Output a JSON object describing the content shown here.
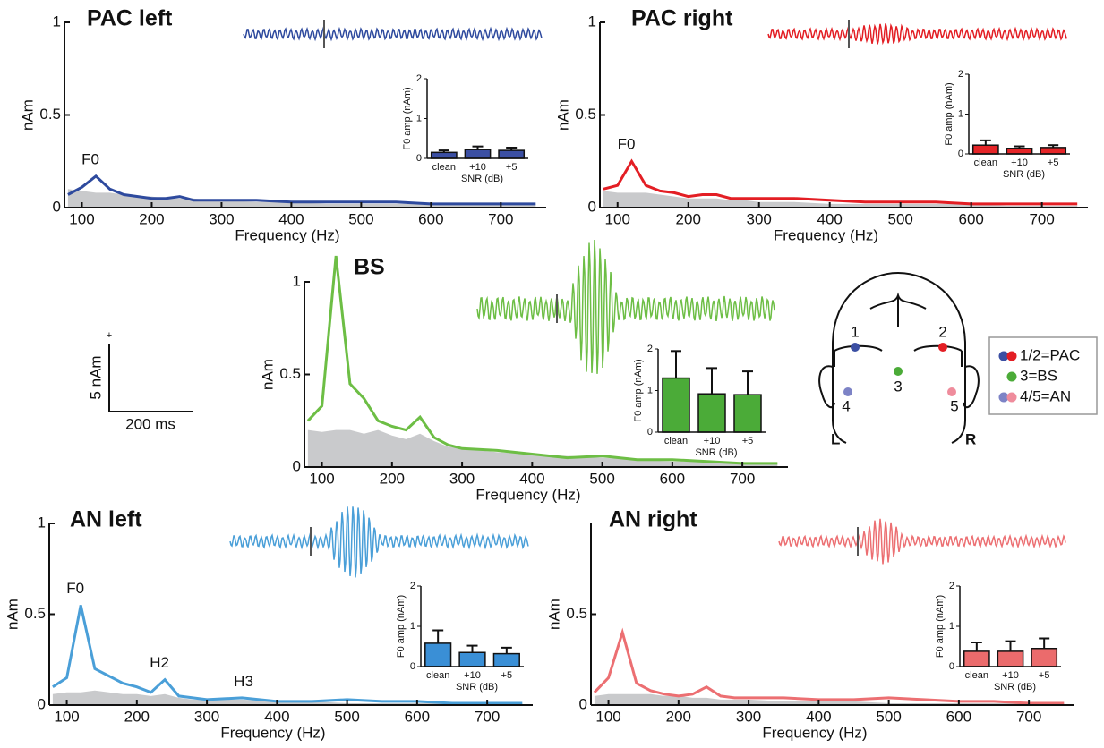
{
  "chart_data": [
    {
      "type": "line",
      "title": "PAC left",
      "xlabel": "Frequency (Hz)",
      "ylabel": "nAm",
      "xlim": [
        75,
        765
      ],
      "ylim": [
        0,
        1
      ],
      "xticks": [
        100,
        200,
        300,
        400,
        500,
        600,
        700
      ],
      "yticks": [
        0,
        0.5,
        1
      ],
      "x": [
        80,
        100,
        120,
        140,
        160,
        180,
        200,
        220,
        240,
        260,
        280,
        300,
        350,
        400,
        450,
        500,
        550,
        600,
        650,
        700,
        750
      ],
      "series": [
        {
          "color": "#c9cacc",
          "area": true,
          "values": [
            0.1,
            0.09,
            0.08,
            0.08,
            0.07,
            0.06,
            0.06,
            0.05,
            0.05,
            0.05,
            0.04,
            0.04,
            0.03,
            0.03,
            0.02,
            0.02,
            0.02,
            0.02,
            0.02,
            0.02,
            0.02
          ]
        },
        {
          "color": "#2e4a9e",
          "values": [
            0.07,
            0.11,
            0.17,
            0.1,
            0.07,
            0.06,
            0.05,
            0.05,
            0.06,
            0.04,
            0.04,
            0.04,
            0.04,
            0.03,
            0.03,
            0.03,
            0.03,
            0.02,
            0.02,
            0.02,
            0.02
          ]
        }
      ],
      "annotations": [
        {
          "label": "F0",
          "x": 120
        }
      ],
      "inset": {
        "type": "bar",
        "ylabel": "F0 amp (nAm)",
        "xlabel": "SNR (dB)",
        "categories": [
          "clean",
          "+10",
          "+5"
        ],
        "values": [
          0.15,
          0.22,
          0.2
        ],
        "errors": [
          0.05,
          0.08,
          0.07
        ],
        "color": "#3b4fa3",
        "ylim": [
          0,
          2
        ],
        "yticks": [
          0,
          1,
          2
        ]
      }
    },
    {
      "type": "line",
      "title": "PAC right",
      "xlabel": "Frequency (Hz)",
      "ylabel": "nAm",
      "xlim": [
        75,
        765
      ],
      "ylim": [
        0,
        1
      ],
      "xticks": [
        100,
        200,
        300,
        400,
        500,
        600,
        700
      ],
      "yticks": [
        0,
        0.5,
        1
      ],
      "x": [
        80,
        100,
        120,
        140,
        160,
        180,
        200,
        220,
        240,
        260,
        280,
        300,
        350,
        400,
        450,
        500,
        550,
        600,
        650,
        700,
        750
      ],
      "series": [
        {
          "color": "#c9cacc",
          "area": true,
          "values": [
            0.09,
            0.08,
            0.08,
            0.08,
            0.07,
            0.06,
            0.05,
            0.05,
            0.05,
            0.04,
            0.04,
            0.03,
            0.03,
            0.02,
            0.02,
            0.02,
            0.02,
            0.02,
            0.01,
            0.01,
            0.01
          ]
        },
        {
          "color": "#e31e24",
          "values": [
            0.1,
            0.12,
            0.25,
            0.12,
            0.09,
            0.08,
            0.06,
            0.07,
            0.07,
            0.05,
            0.05,
            0.05,
            0.05,
            0.04,
            0.03,
            0.03,
            0.03,
            0.02,
            0.02,
            0.02,
            0.02
          ]
        }
      ],
      "annotations": [
        {
          "label": "F0",
          "x": 120
        }
      ],
      "inset": {
        "type": "bar",
        "ylabel": "F0 amp (nAm)",
        "xlabel": "SNR (dB)",
        "categories": [
          "clean",
          "+10",
          "+5"
        ],
        "values": [
          0.22,
          0.14,
          0.16
        ],
        "errors": [
          0.12,
          0.05,
          0.06
        ],
        "color": "#e52528",
        "ylim": [
          0,
          2
        ],
        "yticks": [
          0,
          1,
          2
        ]
      }
    },
    {
      "type": "line",
      "title": "BS",
      "xlabel": "Frequency (Hz)",
      "ylabel": "nAm",
      "xlim": [
        75,
        765
      ],
      "ylim": [
        0,
        1
      ],
      "xticks": [
        100,
        200,
        300,
        400,
        500,
        600,
        700
      ],
      "yticks": [
        0,
        0.5,
        1
      ],
      "x": [
        80,
        100,
        120,
        140,
        160,
        180,
        200,
        220,
        240,
        260,
        280,
        300,
        350,
        400,
        450,
        500,
        550,
        600,
        650,
        700,
        750
      ],
      "series": [
        {
          "color": "#c9cacc",
          "area": true,
          "values": [
            0.2,
            0.19,
            0.2,
            0.2,
            0.18,
            0.2,
            0.17,
            0.15,
            0.18,
            0.14,
            0.11,
            0.1,
            0.08,
            0.07,
            0.06,
            0.05,
            0.04,
            0.03,
            0.03,
            0.02,
            0.02
          ]
        },
        {
          "color": "#6dbe45",
          "values": [
            0.25,
            0.33,
            1.14,
            0.45,
            0.37,
            0.25,
            0.22,
            0.2,
            0.27,
            0.16,
            0.12,
            0.1,
            0.09,
            0.07,
            0.05,
            0.06,
            0.04,
            0.04,
            0.03,
            0.02,
            0.02
          ]
        }
      ],
      "annotations": [],
      "inset": {
        "type": "bar",
        "ylabel": "F0 amp (nAm)",
        "xlabel": "SNR (dB)",
        "categories": [
          "clean",
          "+10",
          "+5"
        ],
        "values": [
          1.3,
          0.92,
          0.9
        ],
        "errors": [
          0.65,
          0.62,
          0.56
        ],
        "color": "#4bab38",
        "ylim": [
          0,
          2
        ],
        "yticks": [
          0,
          1,
          2
        ]
      }
    },
    {
      "type": "line",
      "title": "AN left",
      "xlabel": "Frequency (Hz)",
      "ylabel": "nAm",
      "xlim": [
        75,
        765
      ],
      "ylim": [
        0,
        1
      ],
      "xticks": [
        100,
        200,
        300,
        400,
        500,
        600,
        700
      ],
      "yticks": [
        0,
        0.5,
        1
      ],
      "x": [
        80,
        100,
        120,
        140,
        160,
        180,
        200,
        220,
        240,
        260,
        280,
        300,
        350,
        400,
        450,
        500,
        550,
        600,
        650,
        700,
        750
      ],
      "series": [
        {
          "color": "#c9cacc",
          "area": true,
          "values": [
            0.06,
            0.07,
            0.07,
            0.08,
            0.07,
            0.06,
            0.06,
            0.05,
            0.06,
            0.04,
            0.03,
            0.03,
            0.03,
            0.02,
            0.02,
            0.01,
            0.01,
            0.01,
            0.01,
            0.01,
            0.01
          ]
        },
        {
          "color": "#4a9fd8",
          "values": [
            0.1,
            0.15,
            0.55,
            0.2,
            0.16,
            0.12,
            0.1,
            0.07,
            0.14,
            0.05,
            0.04,
            0.03,
            0.04,
            0.02,
            0.02,
            0.03,
            0.02,
            0.02,
            0.01,
            0.01,
            0.01
          ]
        }
      ],
      "annotations": [
        {
          "label": "F0",
          "x": 120
        },
        {
          "label": "H2",
          "x": 240
        },
        {
          "label": "H3",
          "x": 360
        }
      ],
      "inset": {
        "type": "bar",
        "ylabel": "F0 amp (nAm)",
        "xlabel": "SNR (dB)",
        "categories": [
          "clean",
          "+10",
          "+5"
        ],
        "values": [
          0.58,
          0.35,
          0.32
        ],
        "errors": [
          0.32,
          0.17,
          0.15
        ],
        "color": "#3a8fd6",
        "ylim": [
          0,
          2
        ],
        "yticks": [
          0,
          1,
          2
        ]
      }
    },
    {
      "type": "line",
      "title": "AN right",
      "xlabel": "Frequency (Hz)",
      "ylabel": "nAm",
      "xlim": [
        75,
        765
      ],
      "ylim": [
        0,
        1
      ],
      "xticks": [
        100,
        200,
        300,
        400,
        500,
        600,
        700
      ],
      "yticks": [
        0,
        0.5
      ],
      "x": [
        80,
        100,
        120,
        140,
        160,
        180,
        200,
        220,
        240,
        260,
        280,
        300,
        350,
        400,
        450,
        500,
        550,
        600,
        650,
        700,
        750
      ],
      "series": [
        {
          "color": "#c9cacc",
          "area": true,
          "values": [
            0.05,
            0.06,
            0.06,
            0.06,
            0.06,
            0.05,
            0.05,
            0.04,
            0.04,
            0.03,
            0.03,
            0.03,
            0.02,
            0.02,
            0.02,
            0.01,
            0.01,
            0.01,
            0.01,
            0.01,
            0.01
          ]
        },
        {
          "color": "#ec6f72",
          "values": [
            0.07,
            0.15,
            0.4,
            0.12,
            0.08,
            0.06,
            0.05,
            0.06,
            0.1,
            0.05,
            0.04,
            0.04,
            0.04,
            0.03,
            0.03,
            0.04,
            0.03,
            0.02,
            0.02,
            0.01,
            0.01
          ]
        }
      ],
      "annotations": [],
      "inset": {
        "type": "bar",
        "ylabel": "F0 amp (nAm)",
        "xlabel": "SNR (dB)",
        "categories": [
          "clean",
          "+10",
          "+5"
        ],
        "values": [
          0.38,
          0.38,
          0.45
        ],
        "errors": [
          0.22,
          0.25,
          0.25
        ],
        "color": "#eb6b6c",
        "ylim": [
          0,
          2
        ],
        "yticks": [
          0,
          1,
          2
        ]
      }
    }
  ],
  "scale_bar": {
    "sign": "+",
    "vertical": "5 nAm",
    "horizontal": "200 ms"
  },
  "head_diagram": {
    "electrodes": [
      {
        "label": "1",
        "color": "#3b4fa3"
      },
      {
        "label": "2",
        "color": "#e31e24"
      },
      {
        "label": "3",
        "color": "#4bab38"
      },
      {
        "label": "4",
        "color": "#7d83c6"
      },
      {
        "label": "5",
        "color": "#ef8c9c"
      }
    ],
    "left": "L",
    "right": "R",
    "legend": [
      {
        "label": "1/2=PAC",
        "colors": [
          "#3b4fa3",
          "#e31e24"
        ]
      },
      {
        "label": "3=BS",
        "colors": [
          "#4bab38"
        ]
      },
      {
        "label": "4/5=AN",
        "colors": [
          "#7d83c6",
          "#ef8c9c"
        ]
      }
    ]
  }
}
